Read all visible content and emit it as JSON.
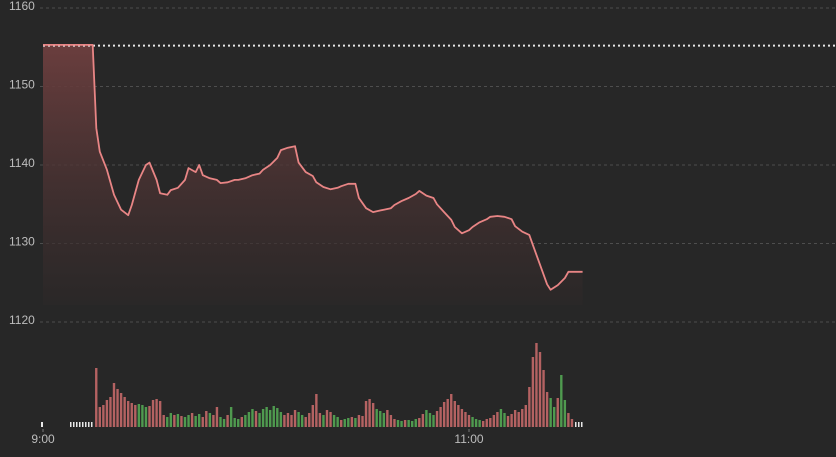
{
  "chart_data": {
    "type": "line",
    "x": [
      0,
      14,
      15,
      16,
      18,
      20,
      22,
      24,
      25,
      27,
      29,
      30,
      32,
      33,
      35,
      36,
      38,
      40,
      41,
      43,
      44,
      45,
      47,
      49,
      50,
      52,
      54,
      55,
      57,
      59,
      61,
      62,
      64,
      66,
      67,
      69,
      71,
      72,
      74,
      76,
      77,
      79,
      81,
      83,
      84,
      86,
      88,
      89,
      91,
      93,
      94,
      96,
      98,
      99,
      101,
      103,
      105,
      106,
      108,
      110,
      111,
      113,
      115,
      116,
      118,
      120,
      121,
      123,
      125,
      126,
      128,
      130,
      132,
      133,
      135,
      137,
      138,
      140,
      142,
      143,
      145,
      147,
      148,
      150,
      152
    ],
    "values": [
      1155.3,
      1155.3,
      1144.7,
      1141.7,
      1139.4,
      1136.2,
      1134.3,
      1133.6,
      1134.9,
      1138.1,
      1140.0,
      1140.3,
      1138.1,
      1136.4,
      1136.2,
      1136.8,
      1137.1,
      1138.1,
      1139.6,
      1139.1,
      1140.0,
      1138.7,
      1138.3,
      1138.1,
      1137.7,
      1137.8,
      1138.1,
      1138.1,
      1138.3,
      1138.7,
      1138.9,
      1139.4,
      1140.0,
      1140.9,
      1141.9,
      1142.2,
      1142.4,
      1140.3,
      1139.1,
      1138.6,
      1137.8,
      1137.2,
      1136.9,
      1137.1,
      1137.3,
      1137.6,
      1137.6,
      1135.8,
      1134.5,
      1134.0,
      1134.1,
      1134.3,
      1134.5,
      1134.9,
      1135.4,
      1135.8,
      1136.3,
      1136.7,
      1136.1,
      1135.8,
      1135.0,
      1134.0,
      1133.0,
      1132.1,
      1131.3,
      1131.7,
      1132.1,
      1132.7,
      1133.1,
      1133.4,
      1133.5,
      1133.4,
      1133.1,
      1132.2,
      1131.5,
      1131.1,
      1129.8,
      1127.3,
      1124.8,
      1124.1,
      1124.7,
      1125.6,
      1126.4,
      1126.4,
      1126.4
    ],
    "color": "#e88585",
    "previous_close": 1155.2,
    "xlim": [
      0,
      223
    ],
    "xticks": [
      {
        "value": 0,
        "label": "9:00"
      },
      {
        "value": 120,
        "label": "11:00"
      }
    ],
    "ylim": [
      1120,
      1160
    ],
    "yticks": [
      1120,
      1130,
      1140,
      1150,
      1160
    ],
    "grid": true,
    "volume": {
      "type": "bar",
      "x_start": 15,
      "values": [
        59,
        20,
        22,
        27,
        30,
        44,
        38,
        34,
        30,
        26,
        24,
        22,
        23,
        22,
        20,
        21,
        27,
        28,
        26,
        12,
        10,
        14,
        12,
        13,
        11,
        10,
        12,
        14,
        11,
        13,
        10,
        16,
        14,
        12,
        20,
        10,
        8,
        12,
        20,
        9,
        8,
        10,
        12,
        15,
        18,
        16,
        14,
        18,
        20,
        17,
        21,
        19,
        15,
        12,
        14,
        12,
        17,
        15,
        12,
        10,
        14,
        22,
        33,
        14,
        12,
        17,
        15,
        12,
        10,
        7,
        8,
        9,
        10,
        9,
        12,
        11,
        26,
        28,
        24,
        18,
        16,
        14,
        17,
        12,
        8,
        7,
        6,
        7,
        7,
        6,
        8,
        9,
        13,
        17,
        14,
        12,
        16,
        20,
        25,
        28,
        33,
        26,
        22,
        18,
        15,
        12,
        10,
        8,
        7,
        6,
        8,
        9,
        12,
        15,
        18,
        14,
        11,
        13,
        17,
        15,
        18,
        22,
        40,
        70,
        84,
        75,
        57,
        35,
        29,
        20,
        29,
        52,
        27,
        14,
        8
      ],
      "colors": [
        "#b46262",
        "#b46262",
        "#b46262",
        "#b46262",
        "#b46262",
        "#b46262",
        "#b46262",
        "#b46262",
        "#b46262",
        "#b46262",
        "#b46262",
        "#b46262",
        "#4f9a4f",
        "#4f9a4f",
        "#4f9a4f",
        "#b46262",
        "#b46262",
        "#b46262",
        "#b46262",
        "#b46262",
        "#4f9a4f",
        "#4f9a4f",
        "#b46262",
        "#4f9a4f",
        "#b46262",
        "#4f9a4f",
        "#4f9a4f",
        "#b46262",
        "#4f9a4f",
        "#4f9a4f",
        "#b46262",
        "#b46262",
        "#4f9a4f",
        "#b46262",
        "#b46262",
        "#4f9a4f",
        "#4f9a4f",
        "#b46262",
        "#4f9a4f",
        "#4f9a4f",
        "#4f9a4f",
        "#b46262",
        "#4f9a4f",
        "#4f9a4f",
        "#4f9a4f",
        "#b46262",
        "#4f9a4f",
        "#4f9a4f",
        "#4f9a4f",
        "#4f9a4f",
        "#4f9a4f",
        "#4f9a4f",
        "#4f9a4f",
        "#b46262",
        "#b46262",
        "#b46262",
        "#b46262",
        "#4f9a4f",
        "#4f9a4f",
        "#b46262",
        "#b46262",
        "#b46262",
        "#b46262",
        "#b46262",
        "#4f9a4f",
        "#b46262",
        "#b46262",
        "#4f9a4f",
        "#4f9a4f",
        "#b46262",
        "#4f9a4f",
        "#4f9a4f",
        "#b46262",
        "#4f9a4f",
        "#b46262",
        "#b46262",
        "#b46262",
        "#b46262",
        "#b46262",
        "#4f9a4f",
        "#4f9a4f",
        "#4f9a4f",
        "#b46262",
        "#b46262",
        "#b46262",
        "#4f9a4f",
        "#4f9a4f",
        "#b46262",
        "#4f9a4f",
        "#4f9a4f",
        "#4f9a4f",
        "#b46262",
        "#b46262",
        "#4f9a4f",
        "#4f9a4f",
        "#4f9a4f",
        "#b46262",
        "#b46262",
        "#b46262",
        "#b46262",
        "#b46262",
        "#b46262",
        "#b46262",
        "#b46262",
        "#b46262",
        "#b46262",
        "#4f9a4f",
        "#4f9a4f",
        "#4f9a4f",
        "#b46262",
        "#b46262",
        "#b46262",
        "#b46262",
        "#b46262",
        "#4f9a4f",
        "#4f9a4f",
        "#b46262",
        "#b46262",
        "#b46262",
        "#b46262",
        "#b46262",
        "#b46262",
        "#b46262",
        "#b46262",
        "#b46262",
        "#b46262",
        "#b46262",
        "#b46262",
        "#4f9a4f",
        "#4f9a4f",
        "#b46262",
        "#4f9a4f",
        "#4f9a4f",
        "#b46262",
        "#b46262"
      ],
      "ylim": [
        0,
        100
      ]
    }
  }
}
